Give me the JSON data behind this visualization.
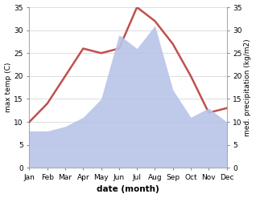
{
  "months": [
    "Jan",
    "Feb",
    "Mar",
    "Apr",
    "May",
    "Jun",
    "Jul",
    "Aug",
    "Sep",
    "Oct",
    "Nov",
    "Dec"
  ],
  "temperature": [
    10,
    14,
    20,
    26,
    25,
    26,
    35,
    32,
    27,
    20,
    12,
    13
  ],
  "precipitation": [
    8,
    8,
    9,
    11,
    15,
    29,
    26,
    31,
    17,
    11,
    13,
    10
  ],
  "temp_color": "#c0504d",
  "precip_color": "#b8c4e8",
  "ylabel_left": "max temp (C)",
  "ylabel_right": "med. precipitation (kg/m2)",
  "xlabel": "date (month)",
  "ylim_left": [
    0,
    35
  ],
  "ylim_right": [
    0,
    35
  ],
  "yticks": [
    0,
    5,
    10,
    15,
    20,
    25,
    30,
    35
  ],
  "background_color": "#ffffff",
  "grid_color": "#d0d0d0"
}
